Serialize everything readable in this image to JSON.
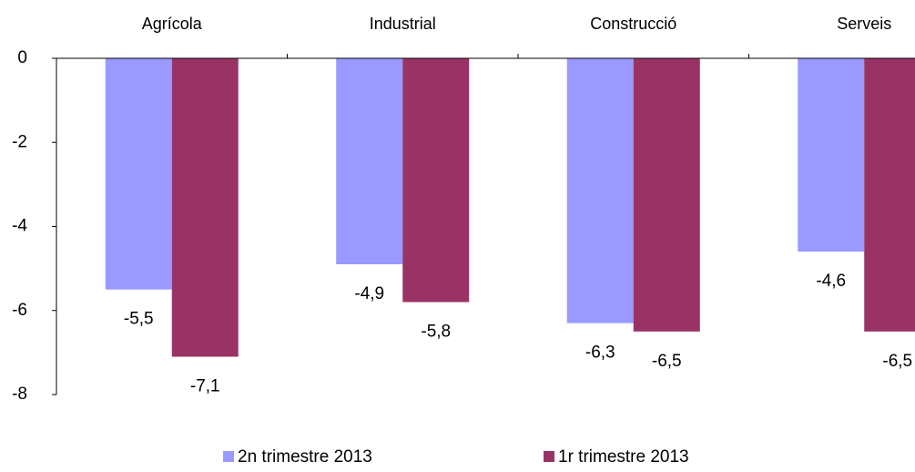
{
  "chart_data": {
    "type": "bar",
    "categories": [
      "Agrícola",
      "Industrial",
      "Construcció",
      "Serveis"
    ],
    "series": [
      {
        "name": "2n trimestre 2013",
        "color": "#9999ff",
        "values": [
          -5.5,
          -4.9,
          -6.3,
          -4.6
        ],
        "value_labels": [
          "-5,5",
          "-4,9",
          "-6,3",
          "-4,6"
        ]
      },
      {
        "name": "1r trimestre 2013",
        "color": "#993366",
        "values": [
          -7.1,
          -5.8,
          -6.5,
          -6.5
        ],
        "value_labels": [
          "-7,1",
          "-5,8",
          "-6,5",
          "-6,5"
        ]
      }
    ],
    "ylim": [
      -8,
      0
    ],
    "yticks": [
      0,
      -2,
      -4,
      -6,
      -8
    ],
    "grid": false,
    "legend": "bottom"
  }
}
